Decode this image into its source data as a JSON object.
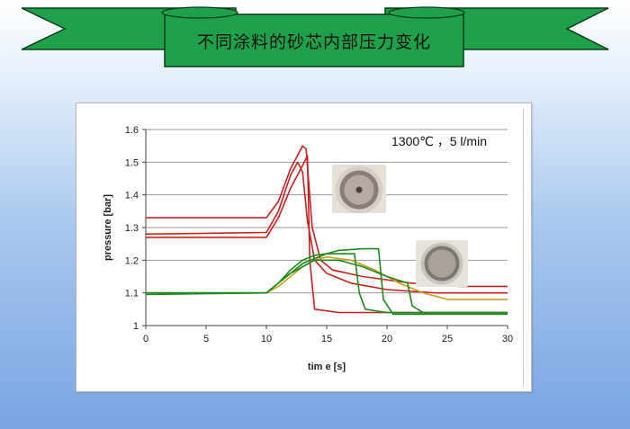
{
  "banner": {
    "title": "不同涂料的砂芯内部压力变化",
    "colors": {
      "ribbon": "#1fa14b",
      "outline": "#0b3d18"
    }
  },
  "chart_data": {
    "type": "line",
    "title": "",
    "annotation": "1300℃ ，5 l/min",
    "xlabel": "tim e [s]",
    "ylabel": "pressure [bar]",
    "xlim": [
      0,
      30
    ],
    "ylim": [
      1,
      1.6
    ],
    "xticks": [
      "0",
      "5",
      "10",
      "15",
      "20",
      "25",
      "30"
    ],
    "yticks": [
      "1",
      "1.1",
      "1.2",
      "1.3",
      "1.4",
      "1.5",
      "1.6"
    ],
    "grid": "horizontal",
    "legend": "none",
    "series": [
      {
        "color": "#cc2020",
        "x": [
          0,
          10,
          11,
          12,
          13,
          13.3,
          13.8,
          14.5,
          15.5,
          18,
          22,
          26,
          30
        ],
        "y": [
          1.33,
          1.33,
          1.38,
          1.48,
          1.55,
          1.54,
          1.3,
          1.2,
          1.17,
          1.15,
          1.13,
          1.12,
          1.12
        ]
      },
      {
        "color": "#cc2020",
        "x": [
          0,
          10,
          11,
          12,
          12.6,
          13,
          13.4,
          14,
          15,
          17,
          20,
          24,
          30
        ],
        "y": [
          1.28,
          1.285,
          1.35,
          1.46,
          1.5,
          1.47,
          1.32,
          1.2,
          1.16,
          1.13,
          1.11,
          1.1,
          1.1
        ]
      },
      {
        "color": "#cc2020",
        "x": [
          0,
          10,
          11,
          12,
          13,
          13.4,
          13.6,
          14,
          16,
          20,
          25,
          30
        ],
        "y": [
          1.27,
          1.27,
          1.33,
          1.42,
          1.49,
          1.52,
          1.2,
          1.05,
          1.04,
          1.04,
          1.04,
          1.04
        ]
      },
      {
        "color": "#c8a020",
        "x": [
          0,
          10,
          11,
          12,
          13,
          14,
          15,
          17,
          19,
          21,
          23,
          25,
          30
        ],
        "y": [
          1.1,
          1.1,
          1.12,
          1.15,
          1.18,
          1.2,
          1.21,
          1.2,
          1.17,
          1.13,
          1.1,
          1.08,
          1.08
        ]
      },
      {
        "color": "#1e8a1e",
        "x": [
          0,
          10,
          11,
          12,
          13,
          14,
          15,
          16,
          17.3,
          17.7,
          18.2,
          20,
          25,
          30
        ],
        "y": [
          1.1,
          1.1,
          1.13,
          1.17,
          1.2,
          1.215,
          1.22,
          1.22,
          1.22,
          1.1,
          1.05,
          1.04,
          1.04,
          1.04
        ]
      },
      {
        "color": "#1e8a1e",
        "x": [
          0,
          10,
          11,
          12,
          13,
          14,
          15,
          16,
          18,
          19.3,
          19.7,
          20.5,
          25,
          30
        ],
        "y": [
          1.095,
          1.1,
          1.13,
          1.16,
          1.19,
          1.205,
          1.22,
          1.23,
          1.235,
          1.235,
          1.08,
          1.035,
          1.035,
          1.035
        ]
      },
      {
        "color": "#1e8a1e",
        "x": [
          0,
          10,
          11,
          12,
          13,
          14,
          16,
          18,
          20,
          21.7,
          22.1,
          23,
          26,
          30
        ],
        "y": [
          1.1,
          1.1,
          1.13,
          1.16,
          1.18,
          1.2,
          1.2,
          1.18,
          1.15,
          1.13,
          1.06,
          1.04,
          1.04,
          1.04
        ]
      }
    ]
  }
}
